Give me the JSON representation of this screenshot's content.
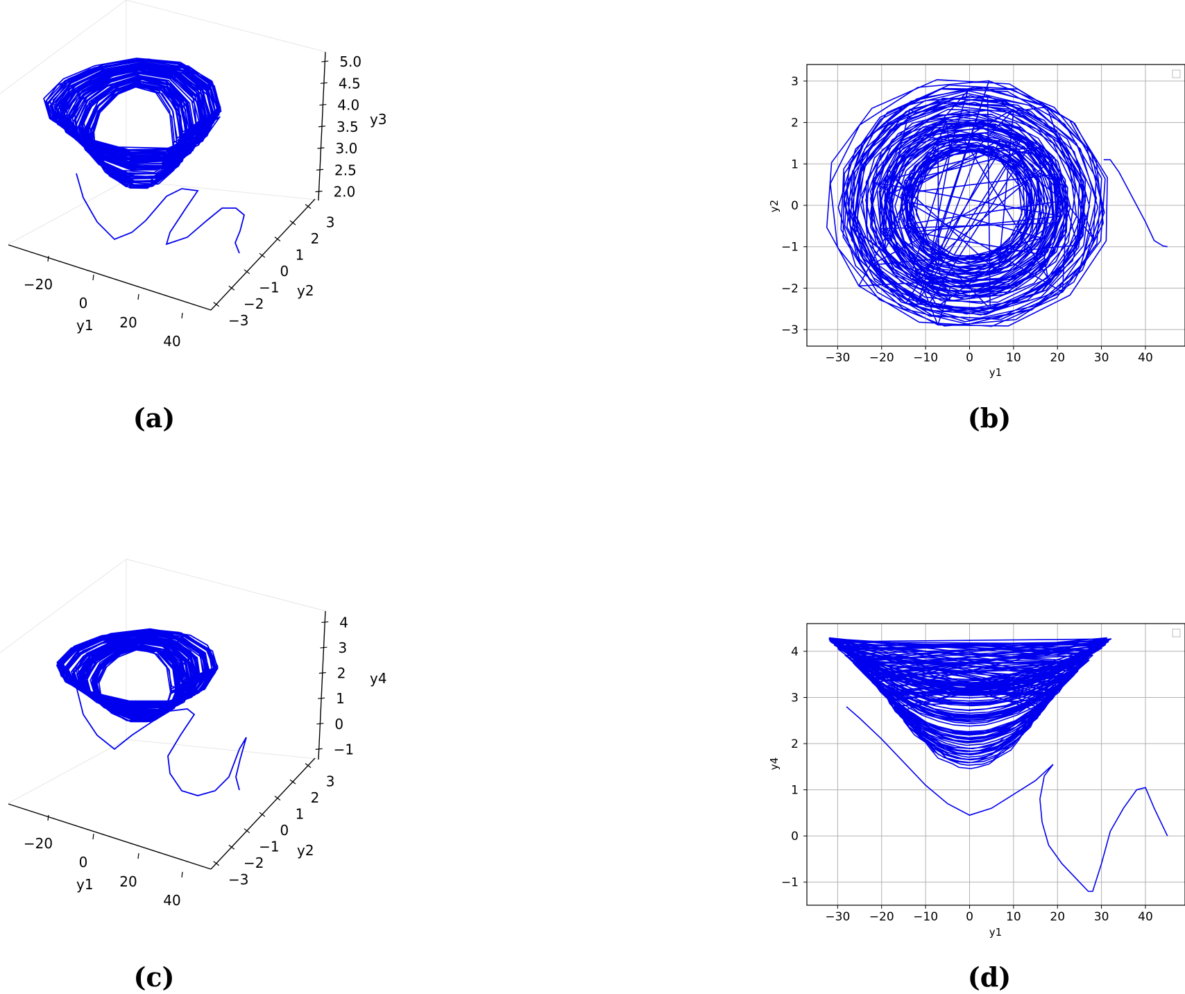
{
  "chart_data": [
    {
      "panel": "a",
      "type": "line",
      "projection": "3d",
      "caption": "(a)",
      "xlabel": "y1",
      "ylabel": "y2",
      "zlabel": "y3",
      "x_ticks": [
        "−20",
        "0",
        "20",
        "40"
      ],
      "y_ticks": [
        "−3",
        "−2",
        "−1",
        "0",
        "1",
        "2",
        "3"
      ],
      "z_ticks": [
        "2.0",
        "2.5",
        "3.0",
        "3.5",
        "4.0",
        "4.5",
        "5.0"
      ],
      "xlim": [
        -35,
        47
      ],
      "ylim": [
        -3.2,
        3.2
      ],
      "zlim": [
        1.8,
        5.1
      ],
      "color": "#0000ee",
      "transient": {
        "x": [
          45,
          38,
          30,
          25,
          20,
          15,
          8,
          0
        ],
        "y": [
          -1.0,
          -0.6,
          -0.2,
          0.4,
          1.1,
          0.9,
          0.3,
          -0.3
        ],
        "z": [
          2.0,
          2.2,
          2.6,
          2.4,
          2.1,
          2.2,
          2.5,
          2.8
        ]
      },
      "attractor": {
        "y1_amplitude": [
          13,
          31
        ],
        "y2_amplitude": [
          1.3,
          3.0
        ],
        "y3_range": [
          2.0,
          5.0
        ]
      }
    },
    {
      "panel": "b",
      "type": "line",
      "caption": "(b)",
      "xlabel": "y1",
      "ylabel": "y2",
      "x_ticks": [
        -30,
        -20,
        -10,
        0,
        10,
        20,
        30,
        40
      ],
      "y_ticks": [
        -3,
        -2,
        -1,
        0,
        1,
        2,
        3
      ],
      "xlim": [
        -37,
        49
      ],
      "ylim": [
        -3.4,
        3.4
      ],
      "grid": true,
      "legend": "top-right",
      "color": "#0000ee",
      "transient": {
        "x": [
          45,
          44,
          42,
          40,
          37,
          34,
          32,
          30.5
        ],
        "y": [
          -1.0,
          -0.98,
          -0.85,
          -0.4,
          0.2,
          0.8,
          1.1,
          1.1
        ]
      },
      "attractor": {
        "center": [
          0,
          0
        ],
        "y1_amplitude": [
          13,
          33
        ],
        "y2_amplitude": [
          1.3,
          3.1
        ]
      }
    },
    {
      "panel": "c",
      "type": "line",
      "projection": "3d",
      "caption": "(c)",
      "xlabel": "y1",
      "ylabel": "y2",
      "zlabel": "y4",
      "x_ticks": [
        "−20",
        "0",
        "20",
        "40"
      ],
      "y_ticks": [
        "−3",
        "−2",
        "−1",
        "0",
        "1",
        "2",
        "3"
      ],
      "z_ticks": [
        "−1",
        "0",
        "1",
        "2",
        "3",
        "4"
      ],
      "xlim": [
        -35,
        47
      ],
      "ylim": [
        -3.2,
        3.2
      ],
      "zlim": [
        -1.2,
        4.4
      ],
      "color": "#0000ee",
      "transient": {
        "x": [
          45,
          40,
          33,
          28,
          22,
          18,
          10,
          0
        ],
        "y": [
          -1.0,
          0.2,
          1.0,
          0.5,
          -0.5,
          0.6,
          1.0,
          0.0
        ],
        "z": [
          0.0,
          1.0,
          0.2,
          -1.2,
          0.5,
          1.5,
          1.4,
          0.5
        ]
      },
      "attractor": {
        "y1_amplitude": [
          13,
          31
        ],
        "y2_amplitude": [
          1.3,
          3.0
        ],
        "y4_range": [
          1.4,
          4.3
        ]
      }
    },
    {
      "panel": "d",
      "type": "line",
      "caption": "(d)",
      "xlabel": "y1",
      "ylabel": "y4",
      "x_ticks": [
        -30,
        -20,
        -10,
        0,
        10,
        20,
        30,
        40
      ],
      "y_ticks": [
        -1,
        0,
        1,
        2,
        3,
        4
      ],
      "xlim": [
        -37,
        49
      ],
      "ylim": [
        -1.5,
        4.6
      ],
      "grid": true,
      "legend": "top-right",
      "color": "#0000ee",
      "transient": {
        "x": [
          45,
          42,
          40,
          38,
          35,
          32,
          30,
          28,
          27,
          24,
          21,
          18,
          16.5,
          16,
          17,
          19,
          15,
          10,
          5,
          0,
          -5,
          -10,
          -15,
          -20,
          -25,
          -28
        ],
        "y": [
          0.0,
          0.6,
          1.05,
          1.0,
          0.6,
          0.1,
          -0.6,
          -1.2,
          -1.2,
          -0.9,
          -0.6,
          -0.2,
          0.3,
          0.8,
          1.3,
          1.55,
          1.2,
          0.9,
          0.6,
          0.45,
          0.7,
          1.1,
          1.6,
          2.1,
          2.55,
          2.8
        ]
      },
      "attractor": {
        "y1_amplitude": [
          13,
          33
        ],
        "y4_bowl_bottom": [
          1.4,
          3.3
        ],
        "y4_bowl_top": 4.3
      }
    }
  ]
}
